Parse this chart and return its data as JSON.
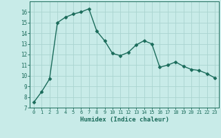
{
  "x": [
    0,
    1,
    2,
    3,
    4,
    5,
    6,
    7,
    8,
    9,
    10,
    11,
    12,
    13,
    14,
    15,
    16,
    17,
    18,
    19,
    20,
    21,
    22,
    23
  ],
  "y": [
    7.5,
    8.5,
    9.7,
    15.0,
    15.5,
    15.8,
    16.0,
    16.3,
    14.2,
    13.3,
    12.1,
    11.9,
    12.2,
    12.9,
    13.3,
    13.0,
    10.8,
    11.0,
    11.3,
    10.9,
    10.6,
    10.5,
    10.2,
    9.8
  ],
  "xlabel": "Humidex (Indice chaleur)",
  "xlim": [
    -0.5,
    23.5
  ],
  "ylim": [
    7,
    17
  ],
  "yticks": [
    7,
    8,
    9,
    10,
    11,
    12,
    13,
    14,
    15,
    16
  ],
  "xticks": [
    0,
    1,
    2,
    3,
    4,
    5,
    6,
    7,
    8,
    9,
    10,
    11,
    12,
    13,
    14,
    15,
    16,
    17,
    18,
    19,
    20,
    21,
    22,
    23
  ],
  "line_color": "#1a6b5a",
  "marker_color": "#1a6b5a",
  "bg_color": "#c8ebe8",
  "grid_color": "#aad4d0",
  "spine_color": "#1a6b5a",
  "tick_color": "#1a6b5a",
  "label_color": "#1a6b5a"
}
